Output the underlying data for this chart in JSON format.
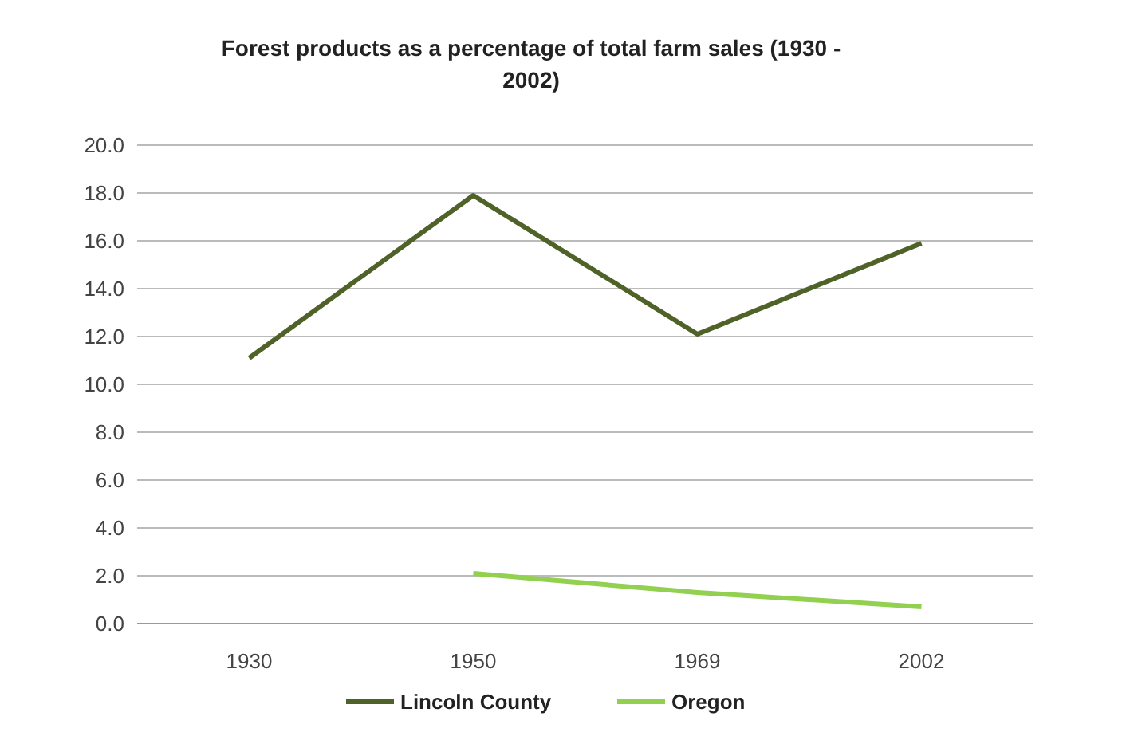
{
  "chart_data": {
    "type": "line",
    "title": "Forest products as a percentage of total farm sales (1930 - 2002)",
    "categories": [
      "1930",
      "1950",
      "1969",
      "2002"
    ],
    "series": [
      {
        "name": "Lincoln County",
        "color": "#4f6228",
        "values": [
          11.1,
          17.9,
          12.1,
          15.9
        ]
      },
      {
        "name": "Oregon",
        "color": "#92d050",
        "values": [
          null,
          2.1,
          1.3,
          0.7
        ]
      }
    ],
    "ylim": [
      0,
      20
    ],
    "yticks": [
      {
        "value": 0,
        "label": "0.0"
      },
      {
        "value": 2,
        "label": "2.0"
      },
      {
        "value": 4,
        "label": "4.0"
      },
      {
        "value": 6,
        "label": "6.0"
      },
      {
        "value": 8,
        "label": "8.0"
      },
      {
        "value": 10,
        "label": "10.0"
      },
      {
        "value": 12,
        "label": "12.0"
      },
      {
        "value": 14,
        "label": "14.0"
      },
      {
        "value": 16,
        "label": "16.0"
      },
      {
        "value": 18,
        "label": "18.0"
      },
      {
        "value": 20,
        "label": "20.0"
      }
    ],
    "grid": "y",
    "legend": "bottom",
    "marker": "none",
    "line_style": "solid"
  }
}
